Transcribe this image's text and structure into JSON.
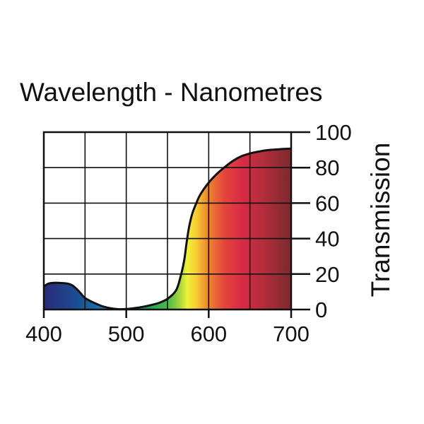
{
  "chart_data": {
    "type": "area",
    "title": "Wavelength - Nanometres",
    "xlabel": "",
    "ylabel": "Transmission",
    "xlim": [
      400,
      700
    ],
    "ylim": [
      0,
      100
    ],
    "x_ticks": [
      "400",
      "500",
      "600",
      "700"
    ],
    "y_ticks": [
      "0",
      "20",
      "40",
      "60",
      "80",
      "100"
    ],
    "y_axis_side": "right",
    "grid": true,
    "fill": "visible-spectrum",
    "series": [
      {
        "x": [
          400,
          405,
          410,
          420,
          430,
          435,
          440,
          445,
          450,
          460,
          470,
          480,
          490,
          500,
          510,
          520,
          530,
          540,
          550,
          560,
          565,
          570,
          573,
          576,
          580,
          585,
          590,
          600,
          610,
          620,
          630,
          640,
          650,
          660,
          670,
          680,
          690,
          700
        ],
        "y": [
          13,
          14.5,
          15,
          15,
          14.5,
          13.5,
          11.5,
          9,
          6.5,
          4,
          2,
          0.8,
          0.2,
          0.3,
          0.8,
          1.5,
          2.5,
          3.8,
          6,
          10.5,
          17,
          27,
          37,
          46,
          54,
          60,
          65,
          71.5,
          76.5,
          80.5,
          84,
          86.5,
          88,
          89,
          89.8,
          90.2,
          90.5,
          90.7
        ]
      }
    ]
  }
}
